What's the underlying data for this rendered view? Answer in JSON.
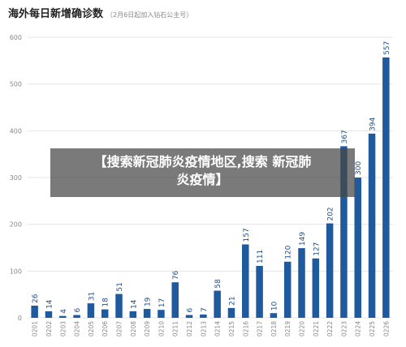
{
  "title": "海外每日新增确诊数",
  "subtitle": "（2月6日起加入钻石公主号）",
  "overlay_line1": "【搜索新冠肺炎疫情地区,搜索 新冠肺",
  "overlay_line2": "炎疫情】",
  "colors": {
    "bar": "#1f5a9e",
    "grid": "#e4e4e4",
    "axis_text": "#888888",
    "label_text": "#1f4e86"
  },
  "chart_data": {
    "type": "bar",
    "title": "海外每日新增确诊数",
    "subtitle": "（2月6日起加入钻石公主号）",
    "xlabel": "",
    "ylabel": "",
    "ylim": [
      0,
      600
    ],
    "yticks": [
      0,
      100,
      200,
      300,
      400,
      500,
      600
    ],
    "grid": true,
    "categories": [
      "0201",
      "0202",
      "0203",
      "0204",
      "0205",
      "0206",
      "0207",
      "0208",
      "0209",
      "0210",
      "0211",
      "0212",
      "0213",
      "0214",
      "0215",
      "0216",
      "0217",
      "0218",
      "0219",
      "0220",
      "0221",
      "0222",
      "0223",
      "0224",
      "0225",
      "0226"
    ],
    "values": [
      26,
      14,
      4,
      6,
      31,
      18,
      51,
      14,
      19,
      17,
      76,
      6,
      7,
      58,
      21,
      157,
      111,
      10,
      120,
      149,
      127,
      202,
      367,
      300,
      394,
      557
    ]
  }
}
